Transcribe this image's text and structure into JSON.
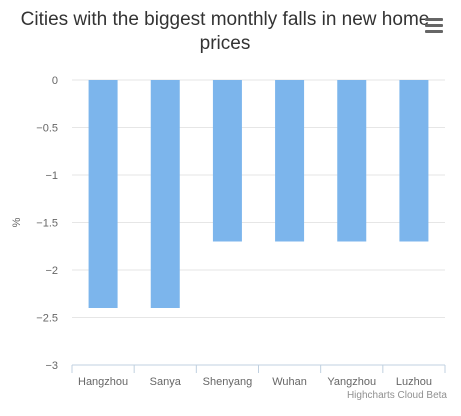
{
  "chart_data": {
    "type": "bar",
    "title": "Cities with the biggest monthly falls in new home prices",
    "xlabel": "",
    "ylabel": "%",
    "categories": [
      "Hangzhou",
      "Sanya",
      "Shenyang",
      "Wuhan",
      "Yangzhou",
      "Luzhou"
    ],
    "values": [
      -2.4,
      -2.4,
      -1.7,
      -1.7,
      -1.7,
      -1.7
    ],
    "ylim": [
      -3,
      0
    ],
    "yticks": [
      0,
      -0.5,
      -1,
      -1.5,
      -2,
      -2.5,
      -3
    ],
    "ytick_labels": [
      "0",
      "−0.5",
      "−1",
      "−1.5",
      "−2",
      "−2.5",
      "−3"
    ],
    "grid": true,
    "legend": "none",
    "bar_color": "#7cb5ec",
    "grid_color": "#e6e6e6",
    "axis_color": "#c0d0e0"
  },
  "menu_icon": "hamburger-menu-icon",
  "credits": "Highcharts Cloud Beta"
}
